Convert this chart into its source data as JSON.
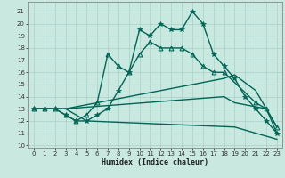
{
  "xlabel": "Humidex (Indice chaleur)",
  "bg_color": "#c8e8e0",
  "line_color": "#006655",
  "grid_color": "#a8d0c8",
  "xlim": [
    -0.5,
    23.5
  ],
  "ylim": [
    9.8,
    21.8
  ],
  "yticks": [
    10,
    11,
    12,
    13,
    14,
    15,
    16,
    17,
    18,
    19,
    20,
    21
  ],
  "xticks": [
    0,
    1,
    2,
    3,
    4,
    5,
    6,
    7,
    8,
    9,
    10,
    11,
    12,
    13,
    14,
    15,
    16,
    17,
    18,
    19,
    20,
    21,
    22,
    23
  ],
  "series": [
    {
      "x": [
        0,
        3,
        4,
        5,
        19,
        23
      ],
      "y": [
        13,
        13,
        12.5,
        12.0,
        11.5,
        10.5
      ],
      "marker": null,
      "lw": 1.0
    },
    {
      "x": [
        0,
        3,
        18,
        19,
        22,
        23
      ],
      "y": [
        13,
        13,
        14.0,
        13.5,
        13.0,
        11.0
      ],
      "marker": null,
      "lw": 1.0
    },
    {
      "x": [
        0,
        3,
        18,
        19,
        21,
        22,
        23
      ],
      "y": [
        13,
        13,
        15.5,
        15.8,
        14.5,
        13.0,
        11.5
      ],
      "marker": null,
      "lw": 1.0
    },
    {
      "x": [
        0,
        1,
        2,
        3,
        4,
        5,
        6,
        7,
        8,
        9,
        10,
        11,
        12,
        13,
        14,
        15,
        16,
        17,
        18,
        21,
        22,
        23
      ],
      "y": [
        13,
        13,
        13,
        12.5,
        12.0,
        12.5,
        13.5,
        17.5,
        16.5,
        16,
        17.5,
        18.5,
        18.0,
        18.0,
        18.0,
        17.5,
        16.5,
        16.0,
        16.0,
        13.5,
        13.0,
        11.5
      ],
      "marker": "^",
      "lw": 1.0
    },
    {
      "x": [
        0,
        1,
        2,
        3,
        4,
        5,
        6,
        7,
        8,
        9,
        10,
        11,
        12,
        13,
        14,
        15,
        16,
        17,
        18,
        19,
        20,
        21,
        22,
        23
      ],
      "y": [
        13,
        13,
        13,
        12.5,
        12.0,
        12.0,
        12.5,
        13.0,
        14.5,
        16.0,
        19.5,
        19.0,
        20.0,
        19.5,
        19.5,
        21.0,
        20.0,
        17.5,
        16.5,
        15.5,
        14.0,
        13.0,
        12.0,
        11.0
      ],
      "marker": "*",
      "lw": 1.0
    }
  ]
}
